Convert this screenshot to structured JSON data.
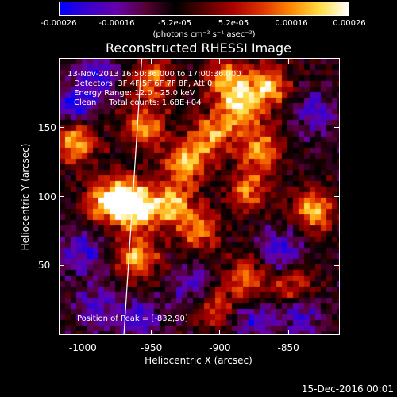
{
  "colorbar": {
    "ticks": [
      "-0.00026",
      "-0.00016",
      "-5.2e-05",
      "5.2e-05",
      "0.00016",
      "0.00026"
    ],
    "tick_values": [
      -0.00026,
      -0.00016,
      -5.2e-05,
      5.2e-05,
      0.00016,
      0.00026
    ],
    "range": [
      -0.00026,
      0.00026
    ],
    "units": "(photons cm⁻² s⁻¹ asec⁻²)",
    "colormap": [
      "#0000ff",
      "#3b00cc",
      "#6600aa",
      "#550033",
      "#000000",
      "#550000",
      "#aa0000",
      "#dd3300",
      "#ff8800",
      "#ffdd44",
      "#ffffff"
    ]
  },
  "title": "Reconstructed RHESSI Image",
  "annotations": {
    "time": "13-Nov-2013 16:50:36.000 to 17:00:36.000",
    "detectors": "Detectors: 3F 4F 5F 6F 7F 8F, Att 0",
    "energy": "Energy Range: 12.0 - 25.0 keV",
    "method": "Clean     Total counts: 1.68E+04",
    "peak": "Position of Peak = [-832,90]"
  },
  "chart_data": {
    "type": "heatmap",
    "title": "Reconstructed RHESSI Image",
    "xlabel": "Heliocentric X (arcsec)",
    "ylabel": "Heliocentric Y (arcsec)",
    "xlim": [
      -1017,
      -813
    ],
    "ylim": [
      0,
      200
    ],
    "xticks": [
      -1000,
      -950,
      -900,
      -850
    ],
    "xtick_labels": [
      "-1000",
      "-950",
      "-900",
      "-850"
    ],
    "yticks": [
      50,
      100,
      150
    ],
    "ytick_labels": [
      "50",
      "100",
      "150"
    ],
    "peak_position": [
      -832,
      90
    ],
    "total_counts": 16800,
    "limb_line": [
      [
        -970,
        0
      ],
      [
        -957,
        200
      ]
    ],
    "hot_spots": [
      {
        "x": -1005,
        "y": 140,
        "value": 0.00026
      },
      {
        "x": -970,
        "y": 100,
        "value": 0.00024
      },
      {
        "x": -960,
        "y": 90,
        "value": 0.00026
      },
      {
        "x": -955,
        "y": 150,
        "value": 0.00022
      },
      {
        "x": -935,
        "y": 95,
        "value": 0.00024
      },
      {
        "x": -925,
        "y": 125,
        "value": 0.00026
      },
      {
        "x": -915,
        "y": 75,
        "value": 0.0002
      },
      {
        "x": -905,
        "y": 145,
        "value": 0.00022
      },
      {
        "x": -885,
        "y": 165,
        "value": 0.00024
      },
      {
        "x": -880,
        "y": 105,
        "value": 0.0002
      },
      {
        "x": -870,
        "y": 135,
        "value": 0.00022
      },
      {
        "x": -865,
        "y": 180,
        "value": 0.00024
      },
      {
        "x": -832,
        "y": 90,
        "value": 0.00026
      },
      {
        "x": -960,
        "y": 55,
        "value": 0.00024
      },
      {
        "x": -985,
        "y": 95,
        "value": 0.0002
      },
      {
        "x": -880,
        "y": 40,
        "value": 0.0002
      },
      {
        "x": -845,
        "y": 35,
        "value": 0.00018
      },
      {
        "x": -905,
        "y": 20,
        "value": 0.00016
      },
      {
        "x": -950,
        "y": 185,
        "value": 0.0002
      },
      {
        "x": -895,
        "y": 185,
        "value": 0.00022
      }
    ],
    "cold_spots": [
      {
        "x": -1005,
        "y": 165,
        "value": -0.00018
      },
      {
        "x": -990,
        "y": 190,
        "value": -0.00014
      },
      {
        "x": -1000,
        "y": 60,
        "value": -0.00016
      },
      {
        "x": -990,
        "y": 20,
        "value": -0.00014
      },
      {
        "x": -960,
        "y": 10,
        "value": -0.00016
      },
      {
        "x": -920,
        "y": 35,
        "value": -0.00014
      },
      {
        "x": -855,
        "y": 60,
        "value": -0.00016
      },
      {
        "x": -830,
        "y": 160,
        "value": -0.00014
      },
      {
        "x": -840,
        "y": 15,
        "value": -0.00016
      },
      {
        "x": -875,
        "y": 10,
        "value": -0.00014
      }
    ]
  },
  "footer": {
    "date": "15-Dec-2016 00:01"
  }
}
